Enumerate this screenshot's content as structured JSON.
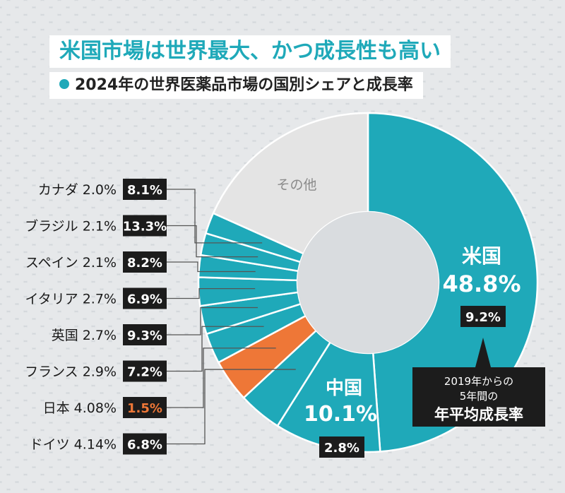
{
  "title": "米国市場は世界最大、かつ成長性も高い",
  "subtitle": "2024年の世界医薬品市場の国別シェアと成長率",
  "callout": [
    "2019年からの",
    "5年間の",
    "年平均成長率"
  ],
  "colors": {
    "accent": "#1fa9b9",
    "japan": "#ee7737",
    "other": "#e4e4e4",
    "box": "#1c1c1c"
  },
  "chart_data": {
    "type": "pie",
    "title": "2024年の世界医薬品市場の国別シェアと成長率",
    "slices": [
      {
        "label": "米国",
        "share": 48.8,
        "share_text": "48.8%",
        "growth": "9.2%"
      },
      {
        "label": "中国",
        "share": 10.1,
        "share_text": "10.1%",
        "growth": "2.8%"
      },
      {
        "label": "ドイツ",
        "share": 4.14,
        "share_text": "4.14%",
        "growth": "6.8%"
      },
      {
        "label": "日本",
        "share": 4.08,
        "share_text": "4.08%",
        "growth": "1.5%"
      },
      {
        "label": "フランス",
        "share": 2.9,
        "share_text": "2.9%",
        "growth": "7.2%"
      },
      {
        "label": "英国",
        "share": 2.7,
        "share_text": "2.7%",
        "growth": "9.3%"
      },
      {
        "label": "イタリア",
        "share": 2.7,
        "share_text": "2.7%",
        "growth": "6.9%"
      },
      {
        "label": "スペイン",
        "share": 2.1,
        "share_text": "2.1%",
        "growth": "8.2%"
      },
      {
        "label": "ブラジル",
        "share": 2.1,
        "share_text": "2.1%",
        "growth": "13.3%"
      },
      {
        "label": "カナダ",
        "share": 2.0,
        "share_text": "2.0%",
        "growth": "8.1%"
      },
      {
        "label": "その他",
        "share": 18.28,
        "share_text": "",
        "growth": ""
      }
    ]
  }
}
